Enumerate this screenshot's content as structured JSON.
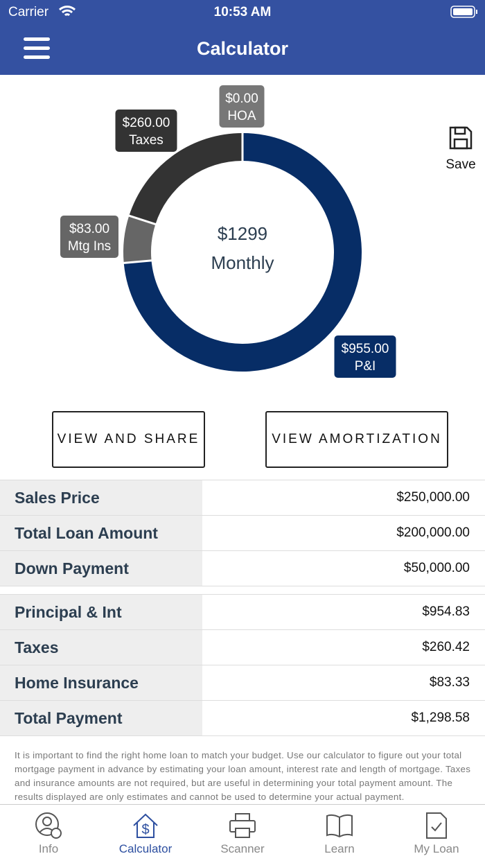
{
  "status_bar": {
    "carrier": "Carrier",
    "time": "10:53 AM"
  },
  "header": {
    "title": "Calculator"
  },
  "save_label": "Save",
  "chart_data": {
    "type": "donut",
    "center_label": "$1299",
    "center_sublabel": "Monthly",
    "categories": [
      "P&I",
      "Mtg Ins",
      "Taxes",
      "HOA"
    ],
    "values": [
      955,
      83,
      260,
      0
    ],
    "value_labels": [
      "$955.00",
      "$83.00",
      "$260.00",
      "$0.00"
    ],
    "colors": [
      "#072d66",
      "#666666",
      "#333333",
      "#777777"
    ]
  },
  "buttons": [
    "VIEW AND SHARE",
    "VIEW AMORTIZATION"
  ],
  "loan_table": {
    "rows": [
      [
        "Sales Price",
        "$250,000.00"
      ],
      [
        "Total Loan Amount",
        "$200,000.00"
      ],
      [
        "Down Payment",
        "$50,000.00"
      ]
    ]
  },
  "payment_table": {
    "rows": [
      [
        "Principal & Int",
        "$954.83"
      ],
      [
        "Taxes",
        "$260.42"
      ],
      [
        "Home Insurance",
        "$83.33"
      ],
      [
        "Total Payment",
        "$1,298.58"
      ]
    ]
  },
  "disclaimer": "It is important to find the right home loan to match your budget. Use our calculator to figure out your total mortgage payment in advance by estimating your loan amount, interest rate and length of mortgage. Taxes and insurance amounts are not required, but are useful in determining your total payment amount. The results displayed are only estimates and cannot be used to determine your actual payment.",
  "tabs": [
    "Info",
    "Calculator",
    "Scanner",
    "Learn",
    "My Loan"
  ]
}
